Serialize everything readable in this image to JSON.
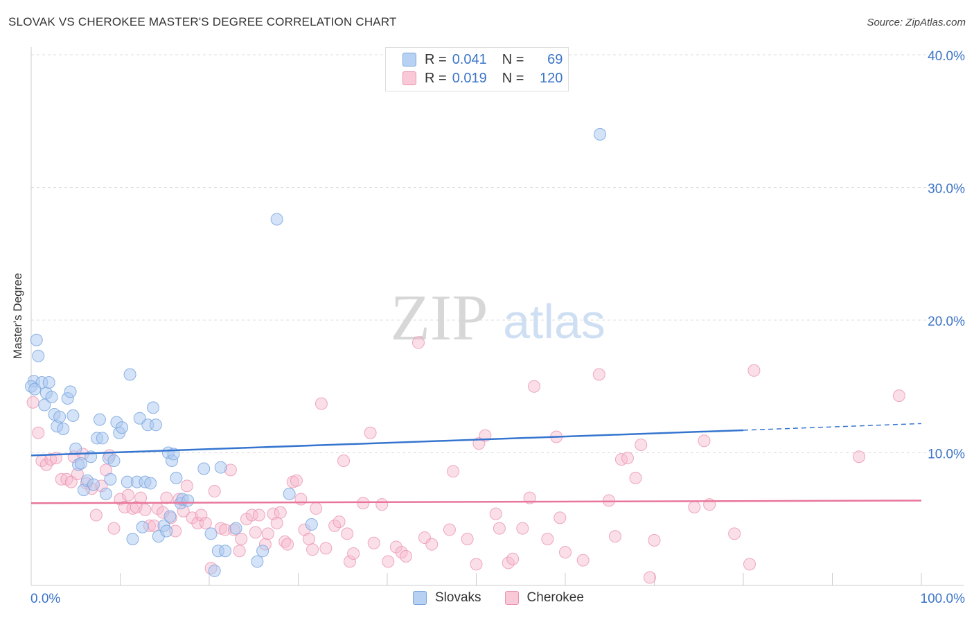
{
  "title": "SLOVAK VS CHEROKEE MASTER'S DEGREE CORRELATION CHART",
  "source": "Source: ZipAtlas.com",
  "watermark": {
    "zip": "ZIP",
    "atlas": "atlas"
  },
  "legend_top": {
    "rows": [
      {
        "r_label": "R =",
        "r_value": "0.041",
        "n_label": "N =",
        "n_value": "69"
      },
      {
        "r_label": "R =",
        "r_value": "0.019",
        "n_label": "N =",
        "n_value": "120"
      }
    ]
  },
  "bottom_legend": {
    "slovaks": "Slovaks",
    "cherokee": "Cherokee"
  },
  "colors": {
    "blue_fill": "#a9c8f0",
    "blue_stroke": "#7aa6df",
    "blue_line": "#3575cf",
    "pink_fill": "#f6b8cb",
    "pink_stroke": "#ea94b0",
    "pink_line": "#e8769a",
    "tick_text": "#3b74c8",
    "grid": "#dddddd"
  },
  "chart_data": {
    "type": "scatter",
    "title": "SLOVAK VS CHEROKEE MASTER'S DEGREE CORRELATION CHART",
    "xlabel": "",
    "ylabel": "Master's Degree",
    "xlim": [
      0,
      100
    ],
    "ylim": [
      0,
      40
    ],
    "x_tick_labels": [
      "0.0%",
      "100.0%"
    ],
    "y_ticks": [
      10,
      20,
      30,
      40
    ],
    "y_tick_labels": [
      "10.0%",
      "20.0%",
      "30.0%",
      "40.0%"
    ],
    "grid": true,
    "series": [
      {
        "name": "Slovaks",
        "r": 0.041,
        "n": 69,
        "trend": {
          "start": [
            0,
            9.8
          ],
          "end_solid": [
            80,
            11.7
          ],
          "end_dashed": [
            100,
            12.2
          ]
        },
        "points": [
          [
            0.3,
            15.4
          ],
          [
            0.6,
            18.5
          ],
          [
            0.8,
            17.3
          ],
          [
            1.2,
            15.3
          ],
          [
            1.5,
            13.6
          ],
          [
            1.7,
            14.5
          ],
          [
            2.0,
            15.3
          ],
          [
            2.3,
            14.2
          ],
          [
            2.6,
            12.9
          ],
          [
            2.9,
            12.0
          ],
          [
            3.2,
            12.7
          ],
          [
            3.6,
            11.8
          ],
          [
            4.1,
            14.1
          ],
          [
            4.4,
            14.6
          ],
          [
            4.7,
            12.8
          ],
          [
            5.0,
            10.3
          ],
          [
            5.3,
            9.1
          ],
          [
            5.6,
            9.2
          ],
          [
            5.9,
            7.2
          ],
          [
            6.3,
            7.9
          ],
          [
            6.7,
            9.7
          ],
          [
            7.0,
            7.6
          ],
          [
            7.4,
            11.1
          ],
          [
            7.7,
            12.5
          ],
          [
            8.0,
            11.1
          ],
          [
            8.4,
            6.9
          ],
          [
            8.7,
            9.6
          ],
          [
            8.9,
            8.0
          ],
          [
            9.3,
            9.4
          ],
          [
            9.6,
            12.3
          ],
          [
            9.9,
            11.5
          ],
          [
            10.2,
            11.9
          ],
          [
            10.8,
            7.8
          ],
          [
            11.1,
            15.9
          ],
          [
            11.4,
            3.5
          ],
          [
            11.9,
            7.8
          ],
          [
            12.2,
            12.6
          ],
          [
            12.5,
            4.4
          ],
          [
            12.8,
            7.8
          ],
          [
            13.1,
            12.1
          ],
          [
            13.4,
            7.7
          ],
          [
            13.7,
            13.4
          ],
          [
            14.0,
            12.1
          ],
          [
            14.3,
            3.7
          ],
          [
            14.9,
            4.5
          ],
          [
            15.2,
            4.1
          ],
          [
            15.4,
            10.0
          ],
          [
            15.6,
            5.2
          ],
          [
            15.8,
            9.4
          ],
          [
            16.0,
            9.9
          ],
          [
            16.3,
            8.1
          ],
          [
            16.8,
            6.2
          ],
          [
            17.0,
            6.5
          ],
          [
            17.6,
            6.4
          ],
          [
            19.4,
            8.8
          ],
          [
            20.2,
            3.9
          ],
          [
            20.6,
            1.1
          ],
          [
            21.0,
            2.6
          ],
          [
            21.3,
            8.9
          ],
          [
            21.8,
            2.6
          ],
          [
            23.0,
            4.3
          ],
          [
            25.4,
            1.8
          ],
          [
            26.0,
            2.6
          ],
          [
            27.6,
            27.6
          ],
          [
            29.0,
            6.9
          ],
          [
            31.5,
            4.6
          ],
          [
            63.9,
            34.0
          ],
          [
            0.0,
            15.0
          ],
          [
            0.4,
            14.8
          ]
        ]
      },
      {
        "name": "Cherokee",
        "r": 0.019,
        "n": 120,
        "trend": {
          "start": [
            0,
            6.2
          ],
          "end": [
            100,
            6.4
          ]
        },
        "points": [
          [
            0.2,
            13.8
          ],
          [
            0.8,
            11.5
          ],
          [
            1.2,
            9.4
          ],
          [
            1.7,
            9.1
          ],
          [
            2.2,
            9.5
          ],
          [
            2.8,
            9.6
          ],
          [
            3.4,
            8.0
          ],
          [
            4.0,
            8.0
          ],
          [
            4.5,
            7.8
          ],
          [
            4.8,
            9.7
          ],
          [
            5.2,
            8.4
          ],
          [
            5.8,
            9.9
          ],
          [
            6.2,
            7.7
          ],
          [
            6.8,
            7.3
          ],
          [
            7.3,
            5.3
          ],
          [
            7.9,
            7.5
          ],
          [
            8.4,
            8.7
          ],
          [
            8.8,
            9.8
          ],
          [
            9.3,
            4.3
          ],
          [
            10.0,
            6.5
          ],
          [
            10.5,
            5.9
          ],
          [
            10.9,
            6.8
          ],
          [
            11.4,
            5.8
          ],
          [
            11.8,
            5.9
          ],
          [
            12.3,
            6.6
          ],
          [
            12.8,
            5.7
          ],
          [
            13.3,
            4.5
          ],
          [
            13.8,
            4.5
          ],
          [
            14.2,
            5.8
          ],
          [
            14.8,
            5.5
          ],
          [
            15.2,
            6.6
          ],
          [
            15.7,
            5.1
          ],
          [
            16.2,
            4.1
          ],
          [
            16.6,
            6.5
          ],
          [
            17.1,
            5.6
          ],
          [
            17.5,
            7.5
          ],
          [
            18.1,
            5.1
          ],
          [
            18.7,
            4.7
          ],
          [
            19.1,
            5.3
          ],
          [
            19.6,
            4.7
          ],
          [
            20.2,
            1.3
          ],
          [
            20.6,
            7.1
          ],
          [
            21.3,
            4.3
          ],
          [
            21.8,
            4.2
          ],
          [
            22.4,
            8.7
          ],
          [
            22.8,
            4.2
          ],
          [
            23.4,
            2.6
          ],
          [
            23.6,
            3.5
          ],
          [
            24.2,
            5.0
          ],
          [
            24.8,
            5.3
          ],
          [
            25.2,
            4.0
          ],
          [
            25.6,
            5.3
          ],
          [
            26.3,
            3.1
          ],
          [
            26.6,
            3.9
          ],
          [
            27.2,
            5.4
          ],
          [
            27.6,
            4.7
          ],
          [
            28.0,
            5.5
          ],
          [
            28.5,
            3.3
          ],
          [
            28.8,
            3.1
          ],
          [
            29.4,
            7.8
          ],
          [
            29.8,
            7.9
          ],
          [
            30.3,
            6.5
          ],
          [
            30.7,
            4.2
          ],
          [
            31.2,
            3.5
          ],
          [
            31.6,
            2.7
          ],
          [
            32.0,
            5.8
          ],
          [
            32.6,
            13.7
          ],
          [
            33.1,
            2.8
          ],
          [
            34.1,
            4.5
          ],
          [
            34.6,
            4.8
          ],
          [
            35.1,
            9.4
          ],
          [
            35.5,
            3.9
          ],
          [
            35.8,
            1.8
          ],
          [
            36.2,
            2.4
          ],
          [
            37.3,
            6.2
          ],
          [
            38.1,
            11.5
          ],
          [
            38.5,
            3.2
          ],
          [
            39.4,
            6.1
          ],
          [
            40.1,
            1.8
          ],
          [
            41.0,
            2.9
          ],
          [
            41.6,
            2.5
          ],
          [
            42.1,
            2.2
          ],
          [
            43.5,
            18.3
          ],
          [
            44.2,
            3.6
          ],
          [
            45.0,
            3.1
          ],
          [
            47.0,
            4.2
          ],
          [
            47.4,
            8.6
          ],
          [
            49.0,
            3.5
          ],
          [
            50.0,
            1.6
          ],
          [
            50.3,
            10.7
          ],
          [
            51.0,
            11.3
          ],
          [
            52.2,
            5.4
          ],
          [
            52.6,
            4.3
          ],
          [
            53.6,
            1.7
          ],
          [
            54.1,
            2.0
          ],
          [
            55.2,
            4.3
          ],
          [
            56.0,
            6.6
          ],
          [
            56.5,
            15.0
          ],
          [
            58.0,
            3.5
          ],
          [
            59.0,
            11.2
          ],
          [
            59.4,
            5.1
          ],
          [
            60.0,
            2.5
          ],
          [
            62.0,
            1.9
          ],
          [
            63.8,
            15.9
          ],
          [
            64.9,
            6.4
          ],
          [
            65.6,
            3.7
          ],
          [
            66.3,
            9.5
          ],
          [
            67.0,
            9.6
          ],
          [
            67.9,
            8.1
          ],
          [
            68.5,
            10.6
          ],
          [
            69.5,
            0.6
          ],
          [
            70.0,
            3.4
          ],
          [
            74.5,
            5.9
          ],
          [
            75.6,
            10.9
          ],
          [
            76.2,
            6.1
          ],
          [
            79.0,
            3.9
          ],
          [
            80.7,
            1.6
          ],
          [
            81.2,
            16.2
          ],
          [
            93.0,
            9.7
          ],
          [
            97.5,
            14.3
          ]
        ]
      }
    ]
  }
}
